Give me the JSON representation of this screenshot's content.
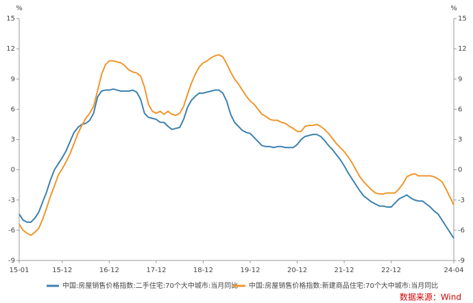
{
  "chart_data": {
    "type": "line",
    "ylabel": "%",
    "y2label": "%",
    "source": "数据来源：Wind",
    "categories": [
      "15-01",
      null,
      null,
      null,
      null,
      null,
      null,
      null,
      null,
      null,
      null,
      "15-12",
      null,
      null,
      null,
      null,
      null,
      null,
      null,
      null,
      null,
      null,
      null,
      "16-12",
      null,
      null,
      null,
      null,
      null,
      null,
      null,
      null,
      null,
      null,
      null,
      "17-12",
      null,
      null,
      null,
      null,
      null,
      null,
      null,
      null,
      null,
      null,
      null,
      "18-12",
      null,
      null,
      null,
      null,
      null,
      null,
      null,
      null,
      null,
      null,
      null,
      "19-12",
      null,
      null,
      null,
      null,
      null,
      null,
      null,
      null,
      null,
      null,
      null,
      "20-12",
      null,
      null,
      null,
      null,
      null,
      null,
      null,
      null,
      null,
      null,
      null,
      "21-12",
      null,
      null,
      null,
      null,
      null,
      null,
      null,
      null,
      null,
      null,
      null,
      "22-12",
      null,
      null,
      null,
      null,
      null,
      null,
      null,
      null,
      null,
      null,
      null,
      null,
      null,
      null,
      null,
      "24-04"
    ],
    "series": [
      {
        "name": "中国:房屋销售价格指数:二手住宅:70个大中城市:当月同比",
        "color": "#3a7fae",
        "values": [
          -4.4,
          -5.0,
          -5.2,
          -5.2,
          -4.8,
          -4.2,
          -3.2,
          -2.2,
          -1.0,
          0.0,
          0.6,
          1.2,
          1.9,
          2.8,
          3.7,
          4.2,
          4.5,
          4.6,
          4.9,
          5.6,
          7.2,
          7.8,
          7.9,
          7.9,
          8.0,
          7.9,
          7.8,
          7.8,
          7.8,
          7.9,
          7.7,
          7.0,
          5.6,
          5.2,
          5.1,
          5.0,
          4.7,
          4.7,
          4.3,
          4.0,
          4.1,
          4.2,
          5.0,
          6.2,
          6.9,
          7.3,
          7.6,
          7.6,
          7.7,
          7.8,
          7.9,
          7.9,
          7.6,
          6.8,
          5.5,
          4.7,
          4.3,
          3.9,
          3.7,
          3.6,
          3.2,
          2.8,
          2.4,
          2.3,
          2.3,
          2.2,
          2.3,
          2.3,
          2.2,
          2.2,
          2.2,
          2.5,
          3.0,
          3.3,
          3.4,
          3.5,
          3.5,
          3.3,
          2.9,
          2.4,
          2.0,
          1.5,
          1.0,
          0.4,
          -0.3,
          -0.9,
          -1.5,
          -2.1,
          -2.6,
          -2.9,
          -3.2,
          -3.4,
          -3.6,
          -3.6,
          -3.7,
          -3.7,
          -3.3,
          -2.9,
          -2.7,
          -2.5,
          -2.8,
          -3.0,
          -3.1,
          -3.1,
          -3.4,
          -3.7,
          -4.1,
          -4.4,
          -5.0,
          -5.6,
          -6.2,
          -6.8
        ]
      },
      {
        "name": "中国:房屋销售价格指数:新建商品住宅:70个大中城市:当月同比",
        "color": "#f0942a",
        "values": [
          -5.4,
          -6.0,
          -6.3,
          -6.5,
          -6.2,
          -5.8,
          -4.9,
          -3.8,
          -2.6,
          -1.6,
          -0.5,
          0.1,
          0.8,
          1.6,
          2.6,
          3.6,
          4.4,
          5.1,
          5.6,
          6.3,
          7.8,
          9.4,
          10.4,
          10.8,
          10.8,
          10.7,
          10.6,
          10.3,
          9.9,
          9.7,
          9.6,
          9.3,
          8.2,
          6.5,
          5.8,
          5.6,
          5.8,
          5.5,
          5.8,
          5.5,
          5.4,
          5.6,
          6.3,
          7.5,
          8.6,
          9.5,
          10.2,
          10.6,
          10.8,
          11.1,
          11.3,
          11.4,
          11.2,
          10.5,
          9.7,
          9.0,
          8.5,
          7.9,
          7.3,
          6.8,
          6.5,
          6.0,
          5.5,
          5.3,
          5.0,
          4.9,
          4.9,
          4.7,
          4.6,
          4.3,
          4.1,
          3.8,
          3.8,
          4.3,
          4.4,
          4.4,
          4.5,
          4.3,
          4.0,
          3.6,
          3.1,
          2.6,
          2.2,
          1.8,
          1.3,
          0.7,
          0.0,
          -0.7,
          -1.2,
          -1.6,
          -2.0,
          -2.3,
          -2.4,
          -2.4,
          -2.3,
          -2.3,
          -2.3,
          -1.9,
          -1.4,
          -0.7,
          -0.5,
          -0.4,
          -0.6,
          -0.6,
          -0.6,
          -0.6,
          -0.7,
          -0.9,
          -1.2,
          -1.9,
          -2.7,
          -3.5
        ]
      }
    ],
    "ylim": [
      -9,
      15
    ],
    "yticks": [
      -9,
      -6,
      -3,
      0,
      3,
      6,
      9,
      12,
      15
    ],
    "y2lim": [
      -9,
      15
    ],
    "y2ticks": [
      -9,
      -6,
      -3,
      0,
      3,
      6,
      9,
      12,
      15
    ],
    "grid": false,
    "legend": "bottom"
  }
}
